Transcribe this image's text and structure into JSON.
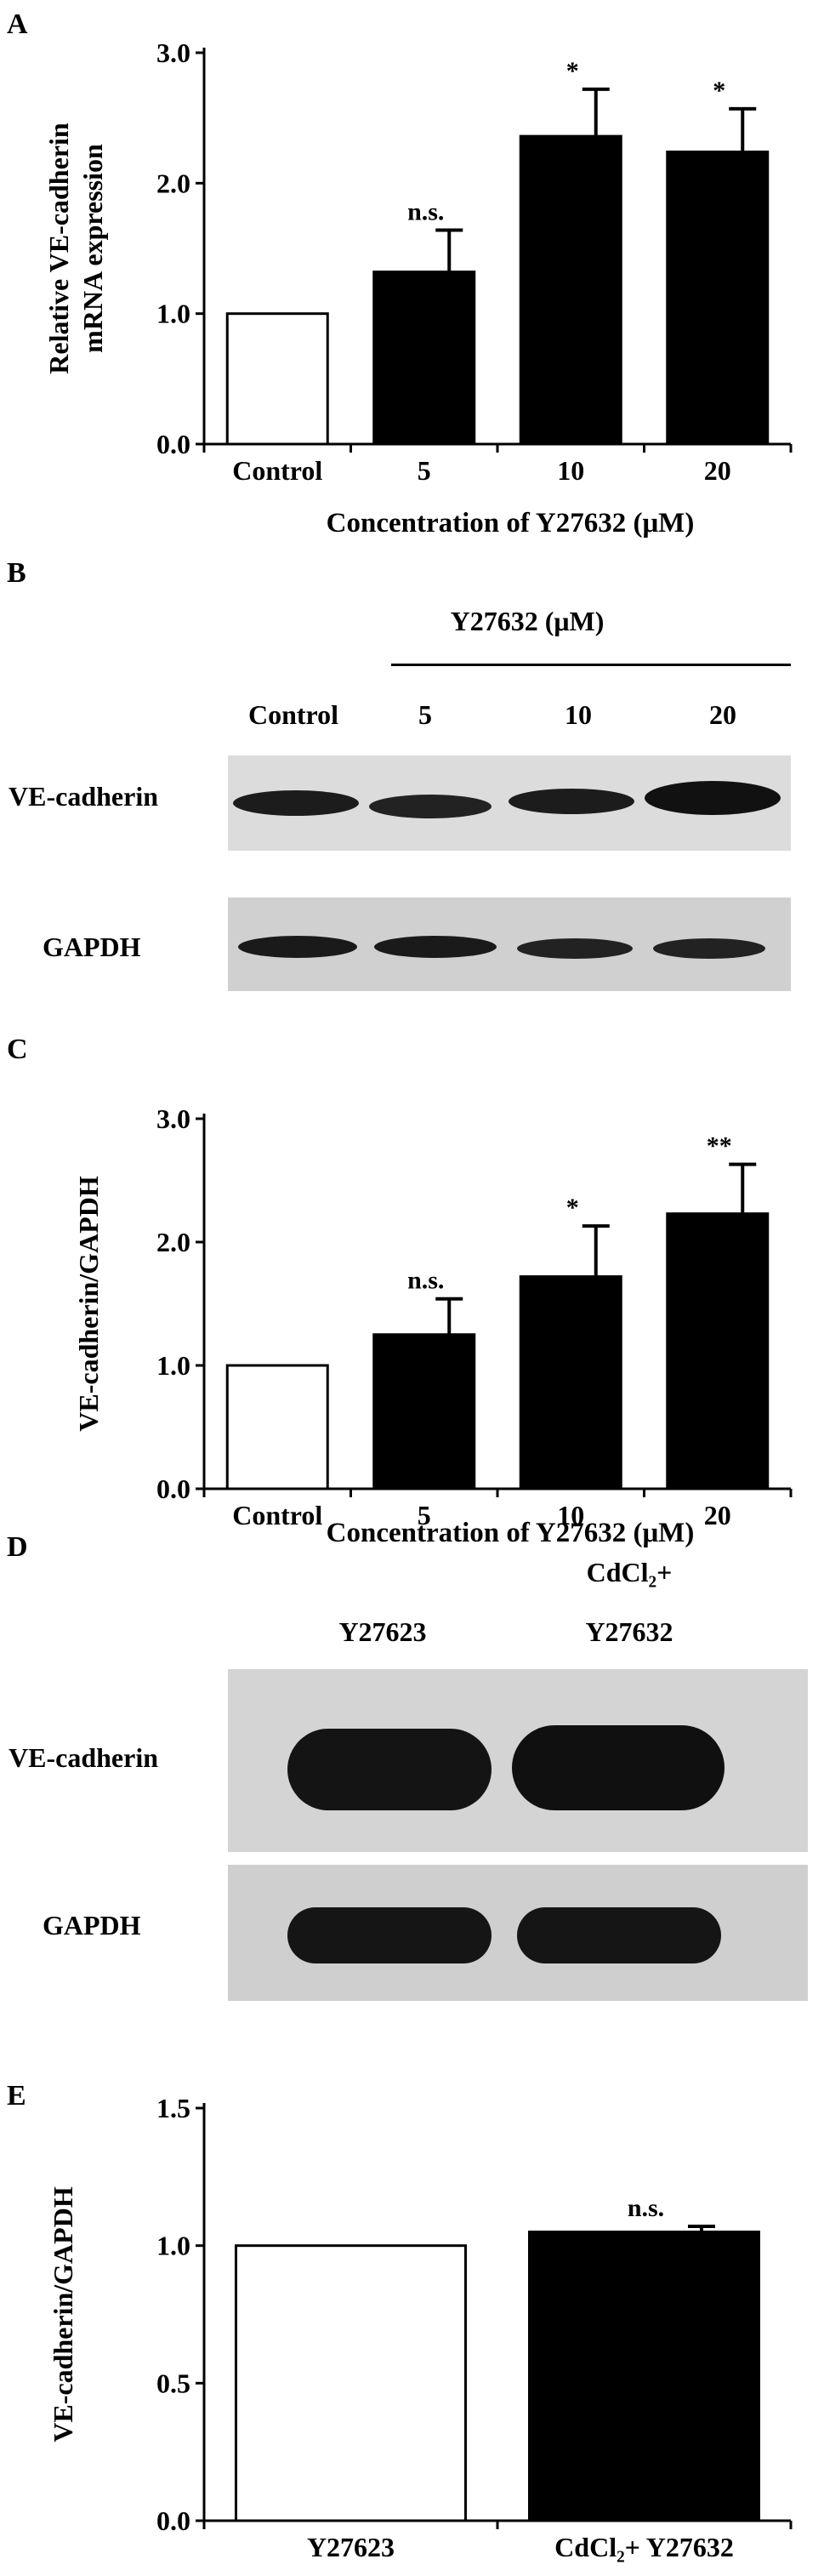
{
  "panels": {
    "A": "A",
    "B": "B",
    "C": "C",
    "D": "D",
    "E": "E"
  },
  "chart_data": [
    {
      "panel": "A",
      "type": "bar",
      "categories": [
        "Control",
        "5",
        "10",
        "20"
      ],
      "values": [
        1.0,
        1.32,
        2.36,
        2.24
      ],
      "errors": [
        0,
        0.32,
        0.36,
        0.33
      ],
      "significance": [
        "",
        "n.s.",
        "*",
        "*"
      ],
      "bar_fill": [
        "#ffffff",
        "#000000",
        "#000000",
        "#000000"
      ],
      "ylabel": [
        "Relative VE-cadherin",
        "mRNA expression"
      ],
      "xlabel": "Concentration of Y27632 (μM)",
      "ylim": [
        0,
        3.0
      ],
      "yticks": [
        "0.0",
        "1.0",
        "2.0",
        "3.0"
      ]
    },
    {
      "panel": "C",
      "type": "bar",
      "categories": [
        "Control",
        "5",
        "10",
        "20"
      ],
      "values": [
        1.0,
        1.25,
        1.72,
        2.23
      ],
      "errors": [
        0,
        0.29,
        0.41,
        0.4
      ],
      "significance": [
        "",
        "n.s.",
        "*",
        "**"
      ],
      "bar_fill": [
        "#ffffff",
        "#000000",
        "#000000",
        "#000000"
      ],
      "ylabel": [
        "VE-cadherin/GAPDH"
      ],
      "xlabel": "Concentration of Y27632 (μM)",
      "ylim": [
        0,
        3.0
      ],
      "yticks": [
        "0.0",
        "1.0",
        "2.0",
        "3.0"
      ]
    },
    {
      "panel": "E",
      "type": "bar",
      "categories": [
        "Y27623",
        "CdCl₂+ Y27632"
      ],
      "values": [
        1.0,
        1.05
      ],
      "errors": [
        0,
        0.02
      ],
      "significance": [
        "",
        "n.s."
      ],
      "bar_fill": [
        "#ffffff",
        "#000000"
      ],
      "ylabel": [
        "VE-cadherin/GAPDH"
      ],
      "xlabel": "",
      "ylim": [
        0,
        1.5
      ],
      "yticks": [
        "0.0",
        "0.5",
        "1.0",
        "1.5"
      ]
    }
  ],
  "blot_b": {
    "treatment_header": "Y27632 (μM)",
    "lanes": [
      "Control",
      "5",
      "10",
      "20"
    ],
    "rows": [
      "VE-cadherin",
      "GAPDH"
    ]
  },
  "blot_d": {
    "lanes": [
      "Y27623",
      "CdCl₂+",
      "Y27632"
    ],
    "rows": [
      "VE-cadherin",
      "GAPDH"
    ]
  }
}
